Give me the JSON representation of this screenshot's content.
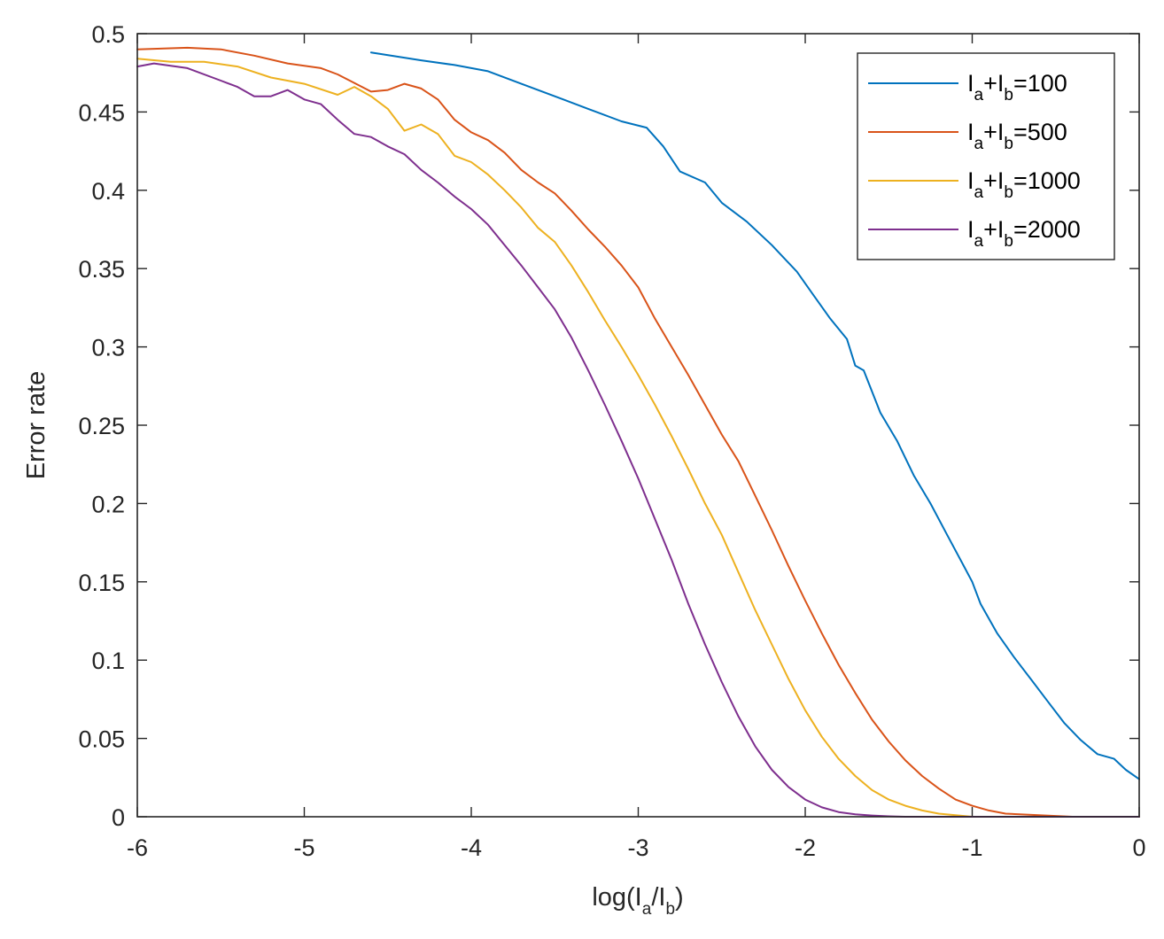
{
  "chart_data": {
    "type": "line",
    "title": "",
    "xlabel": {
      "main": "log(I",
      "sub1": "a",
      "mid": "/I",
      "sub2": "b",
      "end": ")"
    },
    "ylabel": "Error rate",
    "xlim": [
      -6,
      0
    ],
    "ylim": [
      0,
      0.5
    ],
    "x_ticks": [
      -6,
      -5,
      -4,
      -3,
      -2,
      -1,
      0
    ],
    "x_tick_labels": [
      "-6",
      "-5",
      "-4",
      "-3",
      "-2",
      "-1",
      "0"
    ],
    "y_ticks": [
      0,
      0.05,
      0.1,
      0.15,
      0.2,
      0.25,
      0.3,
      0.35,
      0.4,
      0.45,
      0.5
    ],
    "y_tick_labels": [
      "0",
      "0.05",
      "0.1",
      "0.15",
      "0.2",
      "0.25",
      "0.3",
      "0.35",
      "0.4",
      "0.45",
      "0.5"
    ],
    "legend_position": "top-right",
    "series": [
      {
        "name": "I_a+I_b=100",
        "legend": {
          "p1": "I",
          "s1": "a",
          "p2": "+I",
          "s2": "b",
          "p3": "=100"
        },
        "color": "#0072BD",
        "x": [
          -4.6,
          -4.3,
          -4.1,
          -3.9,
          -3.7,
          -3.5,
          -3.3,
          -3.1,
          -2.95,
          -2.85,
          -2.75,
          -2.6,
          -2.5,
          -2.35,
          -2.2,
          -2.05,
          -1.95,
          -1.85,
          -1.75,
          -1.7,
          -1.65,
          -1.55,
          -1.45,
          -1.35,
          -1.25,
          -1.15,
          -1.05,
          -1.0,
          -0.95,
          -0.85,
          -0.75,
          -0.65,
          -0.55,
          -0.45,
          -0.35,
          -0.25,
          -0.15,
          -0.08,
          0.0
        ],
        "y": [
          0.488,
          0.483,
          0.48,
          0.476,
          0.468,
          0.46,
          0.452,
          0.444,
          0.44,
          0.428,
          0.412,
          0.405,
          0.392,
          0.38,
          0.365,
          0.348,
          0.333,
          0.318,
          0.305,
          0.288,
          0.285,
          0.258,
          0.24,
          0.218,
          0.2,
          0.18,
          0.16,
          0.15,
          0.136,
          0.117,
          0.102,
          0.088,
          0.074,
          0.06,
          0.049,
          0.04,
          0.037,
          0.03,
          0.024
        ]
      },
      {
        "name": "I_a+I_b=500",
        "legend": {
          "p1": "I",
          "s1": "a",
          "p2": "+I",
          "s2": "b",
          "p3": "=500"
        },
        "color": "#D95319",
        "x": [
          -6,
          -5.7,
          -5.5,
          -5.3,
          -5.1,
          -4.9,
          -4.8,
          -4.6,
          -4.5,
          -4.4,
          -4.3,
          -4.2,
          -4.1,
          -4.0,
          -3.9,
          -3.8,
          -3.7,
          -3.6,
          -3.5,
          -3.4,
          -3.3,
          -3.2,
          -3.1,
          -3.0,
          -2.9,
          -2.8,
          -2.7,
          -2.6,
          -2.5,
          -2.4,
          -2.3,
          -2.2,
          -2.1,
          -2.0,
          -1.9,
          -1.8,
          -1.7,
          -1.6,
          -1.5,
          -1.4,
          -1.3,
          -1.2,
          -1.1,
          -1.0,
          -0.9,
          -0.8,
          -0.6,
          -0.4,
          -0.2,
          0.0
        ],
        "y": [
          0.49,
          0.491,
          0.49,
          0.486,
          0.481,
          0.478,
          0.474,
          0.463,
          0.464,
          0.468,
          0.465,
          0.458,
          0.445,
          0.437,
          0.432,
          0.424,
          0.413,
          0.405,
          0.398,
          0.387,
          0.375,
          0.364,
          0.352,
          0.338,
          0.318,
          0.3,
          0.282,
          0.263,
          0.244,
          0.227,
          0.205,
          0.183,
          0.16,
          0.138,
          0.117,
          0.097,
          0.079,
          0.062,
          0.048,
          0.036,
          0.026,
          0.018,
          0.011,
          0.007,
          0.004,
          0.002,
          0.001,
          0.0,
          0.0,
          0.0
        ]
      },
      {
        "name": "I_a+I_b=1000",
        "legend": {
          "p1": "I",
          "s1": "a",
          "p2": "+I",
          "s2": "b",
          "p3": "=1000"
        },
        "color": "#EDB120",
        "x": [
          -6,
          -5.8,
          -5.6,
          -5.4,
          -5.2,
          -5.0,
          -4.8,
          -4.7,
          -4.6,
          -4.5,
          -4.4,
          -4.3,
          -4.2,
          -4.1,
          -4.0,
          -3.9,
          -3.8,
          -3.7,
          -3.6,
          -3.5,
          -3.4,
          -3.3,
          -3.2,
          -3.1,
          -3.0,
          -2.9,
          -2.8,
          -2.7,
          -2.6,
          -2.5,
          -2.4,
          -2.3,
          -2.2,
          -2.1,
          -2.0,
          -1.9,
          -1.8,
          -1.7,
          -1.6,
          -1.5,
          -1.4,
          -1.3,
          -1.2,
          -1.1,
          -1.0,
          -0.8,
          -0.5,
          0.0
        ],
        "y": [
          0.484,
          0.482,
          0.482,
          0.479,
          0.472,
          0.468,
          0.461,
          0.466,
          0.46,
          0.452,
          0.438,
          0.442,
          0.436,
          0.422,
          0.418,
          0.41,
          0.4,
          0.389,
          0.376,
          0.367,
          0.352,
          0.335,
          0.317,
          0.3,
          0.282,
          0.263,
          0.243,
          0.222,
          0.2,
          0.18,
          0.156,
          0.132,
          0.11,
          0.088,
          0.068,
          0.051,
          0.037,
          0.026,
          0.017,
          0.011,
          0.007,
          0.004,
          0.002,
          0.001,
          0.0,
          0.0,
          0.0,
          0.0
        ]
      },
      {
        "name": "I_a+I_b=2000",
        "legend": {
          "p1": "I",
          "s1": "a",
          "p2": "+I",
          "s2": "b",
          "p3": "=2000"
        },
        "color": "#7E2F8E",
        "x": [
          -6,
          -5.9,
          -5.7,
          -5.5,
          -5.4,
          -5.3,
          -5.2,
          -5.1,
          -5.0,
          -4.9,
          -4.8,
          -4.7,
          -4.6,
          -4.5,
          -4.4,
          -4.3,
          -4.2,
          -4.1,
          -4.0,
          -3.9,
          -3.8,
          -3.7,
          -3.6,
          -3.5,
          -3.4,
          -3.3,
          -3.2,
          -3.1,
          -3.0,
          -2.9,
          -2.8,
          -2.7,
          -2.6,
          -2.5,
          -2.4,
          -2.3,
          -2.2,
          -2.1,
          -2.0,
          -1.9,
          -1.8,
          -1.7,
          -1.6,
          -1.5,
          -1.4,
          -1.2,
          -1.0,
          -0.5,
          0.0
        ],
        "y": [
          0.479,
          0.481,
          0.478,
          0.47,
          0.466,
          0.46,
          0.46,
          0.464,
          0.458,
          0.455,
          0.445,
          0.436,
          0.434,
          0.428,
          0.423,
          0.413,
          0.405,
          0.396,
          0.388,
          0.378,
          0.365,
          0.352,
          0.338,
          0.324,
          0.306,
          0.285,
          0.263,
          0.24,
          0.216,
          0.19,
          0.164,
          0.136,
          0.11,
          0.086,
          0.064,
          0.045,
          0.03,
          0.019,
          0.011,
          0.006,
          0.003,
          0.0015,
          0.0008,
          0.0003,
          0.0,
          0.0,
          0.0,
          0.0,
          0.0
        ]
      }
    ]
  }
}
